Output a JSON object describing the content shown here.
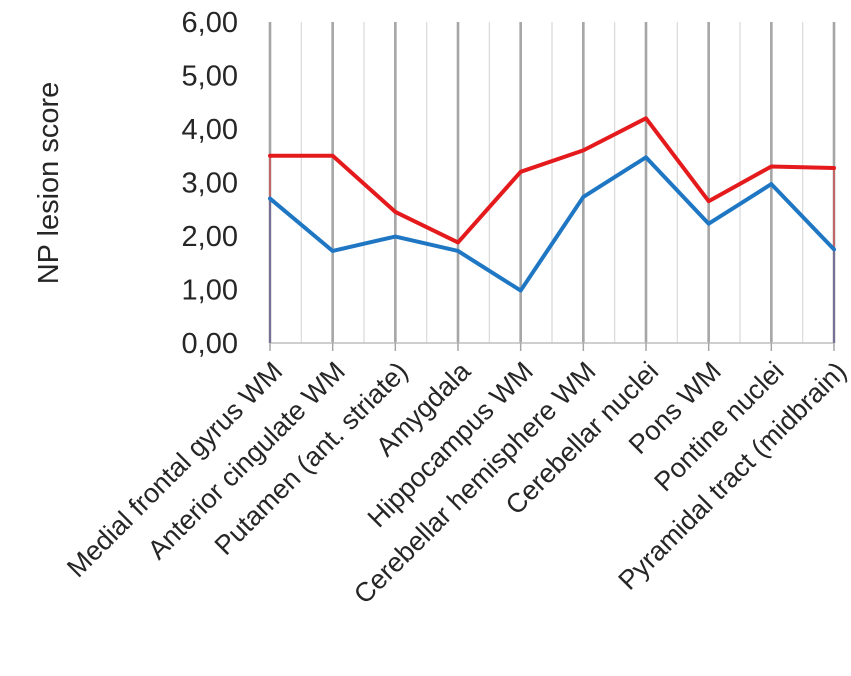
{
  "chart_data": {
    "type": "line",
    "title": "",
    "xlabel": "",
    "ylabel": "NP lesion score",
    "categories": [
      "Medial frontal gyrus WM",
      "Anterior cingulate WM",
      "Putamen (ant. striate)",
      "Amygdala",
      "Hippocampus WM",
      "Cerebellar hemisphere WM",
      "Cerebellar nuclei",
      "Pons WM",
      "Pontine nuclei",
      "Pyramidal tract (midbrain)"
    ],
    "y_ticks": [
      "0,00",
      "1,00",
      "2,00",
      "3,00",
      "4,00",
      "5,00",
      "6,00"
    ],
    "ylim": [
      0,
      6
    ],
    "grid": true,
    "series": [
      {
        "color": "#e41a1c",
        "values": [
          3.5,
          3.5,
          2.45,
          1.88,
          3.2,
          3.6,
          4.2,
          2.65,
          3.3,
          3.27
        ]
      },
      {
        "color": "#1f77c4",
        "values": [
          2.7,
          1.72,
          1.99,
          1.72,
          0.98,
          2.73,
          3.47,
          2.23,
          2.97,
          1.75
        ]
      }
    ]
  }
}
